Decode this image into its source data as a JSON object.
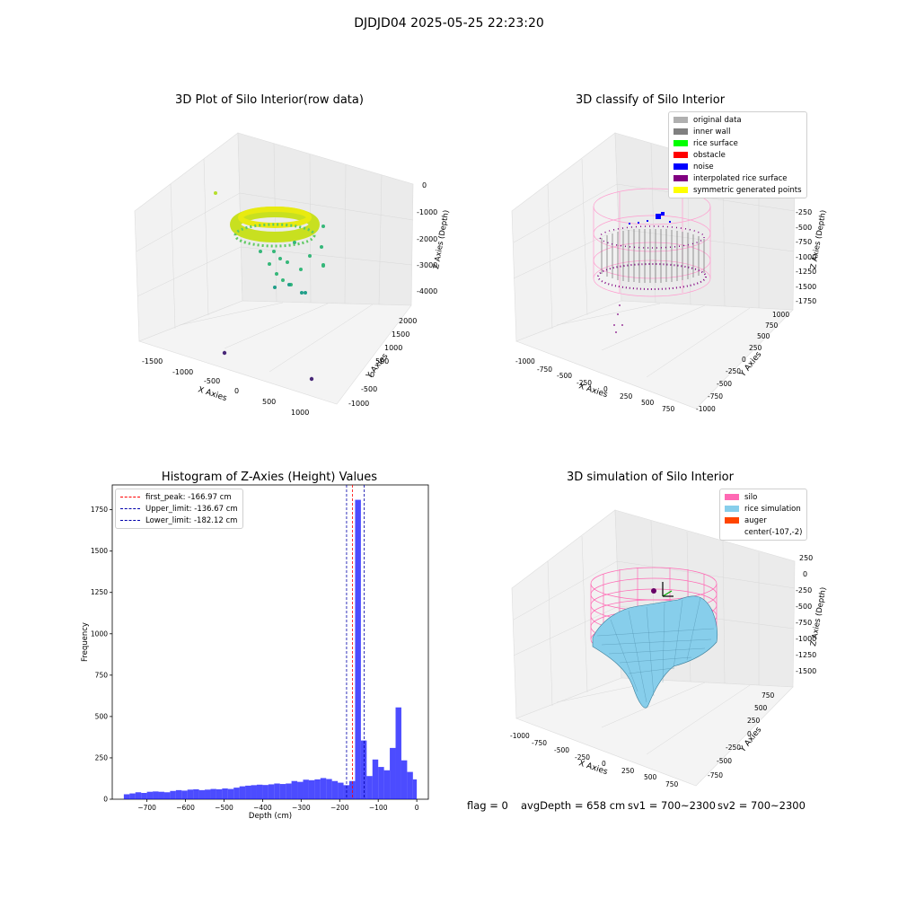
{
  "suptitle": "DJDJD04 2025-05-25 22:23:20",
  "panels": {
    "raw": {
      "title": "3D Plot of Silo Interior(row data)",
      "xlabel": "X Axies",
      "ylabel": "Y Axies",
      "zlabel": "Z Axies (Depth)",
      "xticks": [
        "-1500",
        "-1000",
        "-500",
        "0",
        "500",
        "1000"
      ],
      "yticks": [
        "-1000",
        "-500",
        "0",
        "500",
        "1000",
        "1500",
        "2000"
      ],
      "zticks": [
        "0",
        "-1000",
        "-2000",
        "-3000",
        "-4000"
      ]
    },
    "classify": {
      "title": "3D classify of Silo Interior",
      "xlabel": "X Axies",
      "ylabel": "Y Axies",
      "zlabel": "Z Axies (Depth)",
      "xticks": [
        "-1000",
        "-750",
        "-500",
        "-250",
        "0",
        "250",
        "500",
        "750"
      ],
      "yticks": [
        "-1000",
        "-750",
        "-500",
        "-250",
        "0",
        "250",
        "500",
        "750",
        "1000"
      ],
      "zticks": [
        "0",
        "-250",
        "-500",
        "-750",
        "-1000",
        "-1250",
        "-1500",
        "-1750"
      ],
      "legend": [
        {
          "label": "original data",
          "color": "#b0b0b0"
        },
        {
          "label": "inner wall",
          "color": "#808080"
        },
        {
          "label": "rice surface",
          "color": "#00ff00"
        },
        {
          "label": "obstacle",
          "color": "#ff0000"
        },
        {
          "label": "noise",
          "color": "#0000ff"
        },
        {
          "label": "interpolated rice surface",
          "color": "#800080"
        },
        {
          "label": "symmetric generated points",
          "color": "#ffff00"
        }
      ]
    },
    "histogram": {
      "title": "Histogram of Z-Axies (Height) Values",
      "legend": [
        {
          "label": "first_peak: -166.97 cm",
          "color": "#ff0000"
        },
        {
          "label": "Upper_limit: -136.67 cm",
          "color": "#0000aa"
        },
        {
          "label": "Lower_limit: -182.12 cm",
          "color": "#0000aa"
        }
      ]
    },
    "simulation": {
      "title": "3D simulation of Silo Interior",
      "xlabel": "X Axies",
      "ylabel": "Y Axies",
      "zlabel": "Z Axies (Depth)",
      "xticks": [
        "-1000",
        "-750",
        "-500",
        "-250",
        "0",
        "250",
        "500",
        "750"
      ],
      "yticks": [
        "-750",
        "-500",
        "-250",
        "0",
        "250",
        "500",
        "750"
      ],
      "zticks": [
        "250",
        "0",
        "-250",
        "-500",
        "-750",
        "-1000",
        "-1250",
        "-1500"
      ],
      "legend": [
        {
          "label": "silo",
          "color": "#ff69b4"
        },
        {
          "label": "rice simulation",
          "color": "#87ceeb"
        },
        {
          "label": "auger",
          "color": "#ff4500"
        },
        {
          "label": "center(-107,-2)",
          "color": ""
        }
      ]
    }
  },
  "chart_data": {
    "type": "bar",
    "title": "Histogram of Z-Axies (Height) Values",
    "xlabel": "Depth (cm)",
    "ylabel": "Frequency",
    "xlim": [
      -790,
      30
    ],
    "ylim": [
      0,
      1900
    ],
    "xticks": [
      -700,
      -600,
      -500,
      -400,
      -300,
      -200,
      -100,
      0
    ],
    "yticks": [
      0,
      250,
      500,
      750,
      1000,
      1250,
      1500,
      1750
    ],
    "bar_color": "#0000ff",
    "bins": [
      {
        "x0": -760,
        "x1": -745,
        "value": 30
      },
      {
        "x0": -745,
        "x1": -730,
        "value": 35
      },
      {
        "x0": -730,
        "x1": -715,
        "value": 42
      },
      {
        "x0": -715,
        "x1": -700,
        "value": 38
      },
      {
        "x0": -700,
        "x1": -685,
        "value": 45
      },
      {
        "x0": -685,
        "x1": -670,
        "value": 47
      },
      {
        "x0": -670,
        "x1": -655,
        "value": 45
      },
      {
        "x0": -655,
        "x1": -640,
        "value": 42
      },
      {
        "x0": -640,
        "x1": -625,
        "value": 50
      },
      {
        "x0": -625,
        "x1": -610,
        "value": 55
      },
      {
        "x0": -610,
        "x1": -595,
        "value": 52
      },
      {
        "x0": -595,
        "x1": -580,
        "value": 58
      },
      {
        "x0": -580,
        "x1": -565,
        "value": 60
      },
      {
        "x0": -565,
        "x1": -550,
        "value": 55
      },
      {
        "x0": -550,
        "x1": -535,
        "value": 58
      },
      {
        "x0": -535,
        "x1": -520,
        "value": 62
      },
      {
        "x0": -520,
        "x1": -505,
        "value": 60
      },
      {
        "x0": -505,
        "x1": -490,
        "value": 65
      },
      {
        "x0": -490,
        "x1": -475,
        "value": 62
      },
      {
        "x0": -475,
        "x1": -460,
        "value": 70
      },
      {
        "x0": -460,
        "x1": -445,
        "value": 78
      },
      {
        "x0": -445,
        "x1": -430,
        "value": 82
      },
      {
        "x0": -430,
        "x1": -415,
        "value": 85
      },
      {
        "x0": -415,
        "x1": -400,
        "value": 88
      },
      {
        "x0": -400,
        "x1": -385,
        "value": 86
      },
      {
        "x0": -385,
        "x1": -370,
        "value": 90
      },
      {
        "x0": -370,
        "x1": -355,
        "value": 95
      },
      {
        "x0": -355,
        "x1": -340,
        "value": 92
      },
      {
        "x0": -340,
        "x1": -325,
        "value": 95
      },
      {
        "x0": -325,
        "x1": -310,
        "value": 110
      },
      {
        "x0": -310,
        "x1": -295,
        "value": 105
      },
      {
        "x0": -295,
        "x1": -280,
        "value": 118
      },
      {
        "x0": -280,
        "x1": -265,
        "value": 115
      },
      {
        "x0": -265,
        "x1": -250,
        "value": 120
      },
      {
        "x0": -250,
        "x1": -235,
        "value": 128
      },
      {
        "x0": -235,
        "x1": -220,
        "value": 122
      },
      {
        "x0": -220,
        "x1": -205,
        "value": 110
      },
      {
        "x0": -205,
        "x1": -190,
        "value": 100
      },
      {
        "x0": -190,
        "x1": -175,
        "value": 85
      },
      {
        "x0": -175,
        "x1": -160,
        "value": 110
      },
      {
        "x0": -160,
        "x1": -145,
        "value": 1810
      },
      {
        "x0": -145,
        "x1": -130,
        "value": 355
      },
      {
        "x0": -130,
        "x1": -115,
        "value": 140
      },
      {
        "x0": -115,
        "x1": -100,
        "value": 240
      },
      {
        "x0": -100,
        "x1": -85,
        "value": 195
      },
      {
        "x0": -85,
        "x1": -70,
        "value": 175
      },
      {
        "x0": -70,
        "x1": -55,
        "value": 310
      },
      {
        "x0": -55,
        "x1": -40,
        "value": 555
      },
      {
        "x0": -40,
        "x1": -25,
        "value": 235
      },
      {
        "x0": -25,
        "x1": -10,
        "value": 165
      },
      {
        "x0": -10,
        "x1": 0,
        "value": 120
      }
    ],
    "vlines": [
      {
        "name": "first_peak",
        "x": -166.97,
        "color": "#ff0000"
      },
      {
        "name": "Upper_limit",
        "x": -136.67,
        "color": "#0000aa"
      },
      {
        "name": "Lower_limit",
        "x": -182.12,
        "color": "#0000aa"
      }
    ]
  },
  "footer": {
    "flag": "flag = 0",
    "avg": "avgDepth = 658 cm",
    "sv1": "sv1 = 700~2300",
    "sv2": "sv2 = 700~2300"
  }
}
